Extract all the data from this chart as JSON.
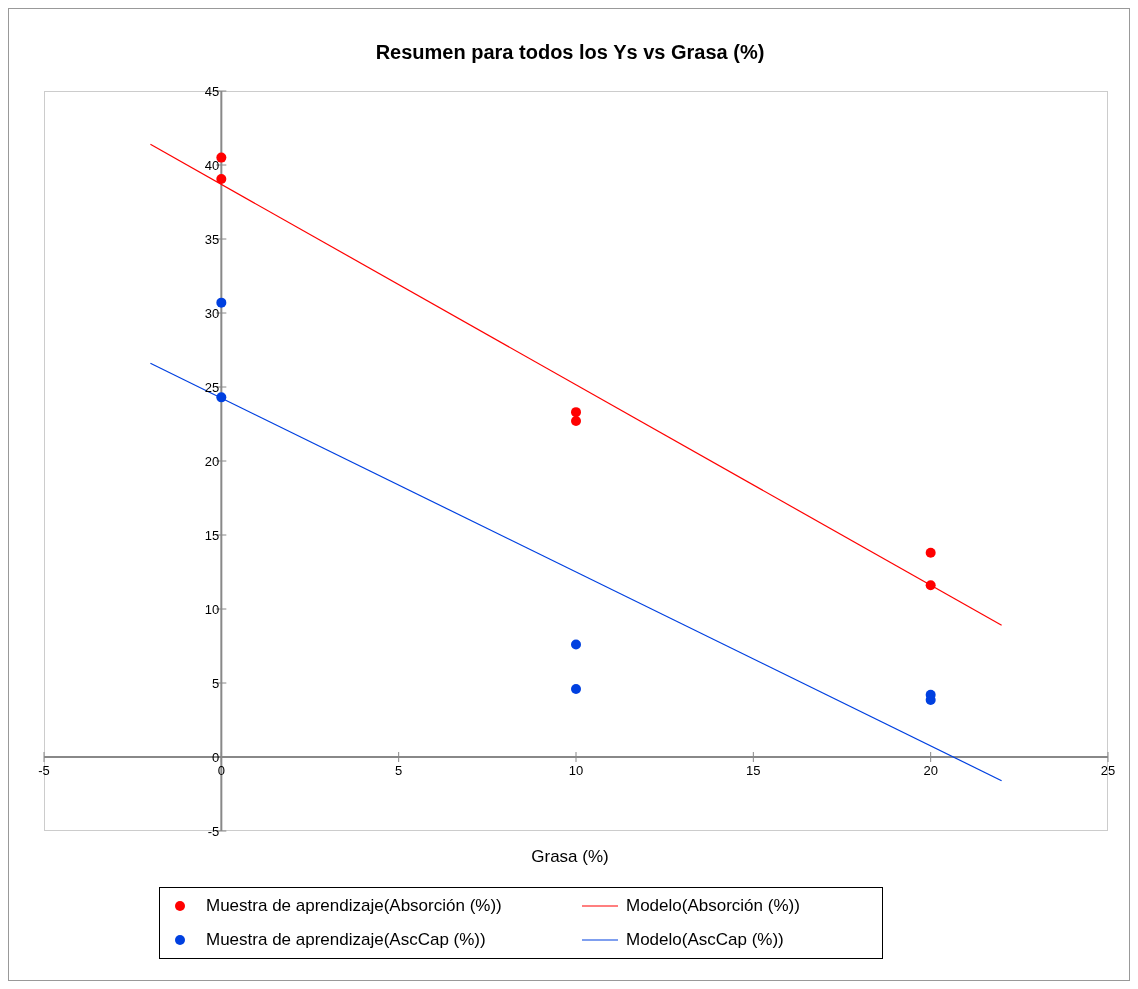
{
  "chart_data": {
    "type": "scatter",
    "title": "Resumen para todos los Ys vs Grasa (%)",
    "xlabel": "Grasa (%)",
    "series": [
      {
        "name": "Muestra de aprendizaje(Absorción (%))",
        "color": "#ff0000",
        "x": [
          0,
          0,
          10,
          10,
          20,
          20
        ],
        "values": [
          40.5,
          39.05,
          23.3,
          22.7,
          13.8,
          11.6
        ]
      },
      {
        "name": "Modelo(Absorción (%))",
        "type": "line",
        "marker": "none",
        "color": "#ff0000",
        "x": [
          -2,
          22
        ],
        "values": [
          41.4,
          8.9
        ]
      },
      {
        "name": "Muestra de aprendizaje(AscCap (%))",
        "color": "#0040e0",
        "x": [
          0,
          0,
          10,
          10,
          20,
          20
        ],
        "values": [
          30.7,
          24.3,
          7.6,
          4.6,
          4.2,
          3.85
        ]
      },
      {
        "name": "Modelo(AscCap (%))",
        "type": "line",
        "marker": "none",
        "color": "#0040e0",
        "x": [
          -2,
          22
        ],
        "values": [
          26.6,
          -1.6
        ]
      }
    ],
    "xlim": [
      -5,
      25
    ],
    "xticks": [
      -5,
      0,
      5,
      10,
      15,
      20,
      25
    ],
    "ylim": [
      -5,
      45
    ],
    "yticks": [
      -5,
      0,
      5,
      10,
      15,
      20,
      25,
      30,
      35,
      40,
      45
    ],
    "marker": "circle",
    "legend": "bottom"
  }
}
